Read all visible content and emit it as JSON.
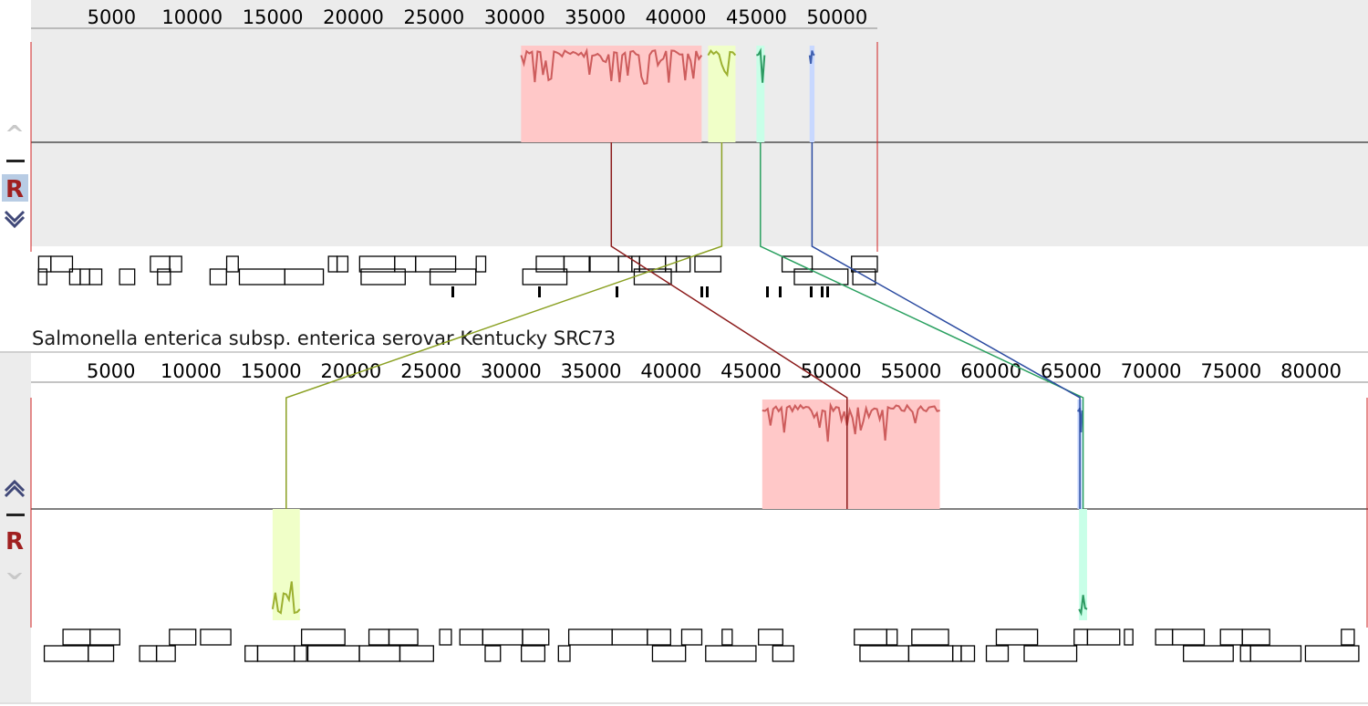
{
  "panels": [
    {
      "id": "top",
      "title": "",
      "axis": {
        "min": 0,
        "max": 52500,
        "ticks": [
          "5000",
          "10000",
          "15000",
          "20000",
          "25000",
          "30000",
          "35000",
          "40000",
          "45000",
          "50000"
        ]
      },
      "controls": {
        "up": "^",
        "minus": "–",
        "reset": "R",
        "down": "v"
      },
      "lcbs": [
        {
          "color": "#cd5c5c",
          "fill": "#ffc8c8",
          "start": 30400,
          "end": 41600,
          "strand": "+"
        },
        {
          "color": "#9cb030",
          "fill": "#f0ffc8",
          "start": 42000,
          "end": 43700,
          "strand": "+"
        },
        {
          "color": "#2e9a62",
          "fill": "#c8ffe8",
          "start": 45000,
          "end": 45500,
          "strand": "+"
        },
        {
          "color": "#4060b0",
          "fill": "#c8d8ff",
          "start": 48300,
          "end": 48600,
          "strand": "+"
        }
      ]
    },
    {
      "id": "bottom",
      "title": "Salmonella enterica subsp. enterica serovar Kentucky SRC73",
      "axis": {
        "min": 0,
        "max": 83500,
        "ticks": [
          "5000",
          "10000",
          "15000",
          "20000",
          "25000",
          "30000",
          "35000",
          "40000",
          "45000",
          "50000",
          "55000",
          "60000",
          "65000",
          "70000",
          "75000",
          "80000"
        ]
      },
      "controls": {
        "up": "^",
        "minus": "–",
        "reset": "R",
        "down": "v"
      },
      "lcbs": [
        {
          "color": "#cd5c5c",
          "fill": "#ffc8c8",
          "start": 45700,
          "end": 56800,
          "strand": "+"
        },
        {
          "color": "#9cb030",
          "fill": "#f0ffc8",
          "start": 15100,
          "end": 16800,
          "strand": "-"
        },
        {
          "color": "#2e9a62",
          "fill": "#c8ffe8",
          "start": 65500,
          "end": 66000,
          "strand": "-"
        },
        {
          "color": "#4060b0",
          "fill": "#c8d8ff",
          "start": 65400,
          "end": 65700,
          "strand": "+"
        }
      ]
    }
  ],
  "connectors": [
    {
      "color": "#8b1a1a"
    },
    {
      "color": "#8aa022"
    },
    {
      "color": "#2aa060"
    },
    {
      "color": "#2a4aa0"
    }
  ]
}
